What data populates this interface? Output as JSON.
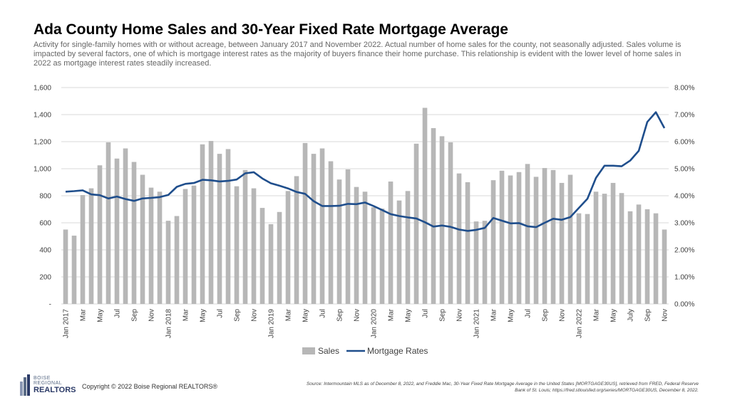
{
  "chart_data": {
    "type": "bar+line",
    "title": "Ada County Home Sales and 30-Year Fixed Rate Mortgage Average",
    "subtitle": "Activity for single-family homes with or without acreage, between January  2017 and November 2022. Actual number of home sales for the county, not seasonally adjusted. Sales volume is impacted by several factors, one of which is mortgage interest rates as the majority of buyers finance their home purchase. This relationship is evident with the lower level of home sales in 2022 as mortgage interest rates steadily increased.",
    "x_tick_labels": [
      "Jan 2017",
      "Mar",
      "May",
      "Jul",
      "Sep",
      "Nov",
      "Jan 2018",
      "Mar",
      "May",
      "Jul",
      "Sep",
      "Nov",
      "Jan 2019",
      "Mar",
      "May",
      "Jul",
      "Sep",
      "Nov",
      "Jan 2020",
      "Mar",
      "May",
      "Jul",
      "Sep",
      "Nov",
      "Jan 2021",
      "Mar",
      "May",
      "Jul",
      "Sep",
      "Nov",
      "Jan 2022",
      "Mar",
      "May",
      "July",
      "Sep",
      "Nov"
    ],
    "y_left": {
      "ylim": [
        0,
        1600
      ],
      "ticks": [
        "-",
        "200",
        "400",
        "600",
        "800",
        "1,000",
        "1,200",
        "1,400",
        "1,600"
      ]
    },
    "y_right": {
      "ylim": [
        0,
        8
      ],
      "ticks": [
        "0.00%",
        "1.00%",
        "2.00%",
        "3.00%",
        "4.00%",
        "5.00%",
        "6.00%",
        "7.00%",
        "8.00%"
      ]
    },
    "grid": true,
    "legend_position": "bottom",
    "series": [
      {
        "name": "Sales",
        "kind": "bar",
        "axis": "left",
        "color": "#b7b7b7",
        "values": [
          550,
          505,
          805,
          855,
          1025,
          1195,
          1075,
          1150,
          1050,
          955,
          860,
          830,
          615,
          650,
          850,
          875,
          1180,
          1205,
          1110,
          1145,
          870,
          990,
          855,
          710,
          590,
          680,
          835,
          945,
          1190,
          1110,
          1150,
          1055,
          920,
          995,
          865,
          830,
          715,
          705,
          905,
          765,
          835,
          1185,
          1450,
          1300,
          1240,
          1195,
          965,
          900,
          610,
          615,
          915,
          985,
          950,
          975,
          1035,
          940,
          1005,
          990,
          895,
          955,
          670,
          665,
          830,
          815,
          895,
          820,
          685,
          735,
          700,
          670,
          550
        ]
      },
      {
        "name": "Mortgage Rates",
        "kind": "line",
        "axis": "right",
        "color": "#1f4e8c",
        "values": [
          4.15,
          4.17,
          4.2,
          4.05,
          4.02,
          3.9,
          3.97,
          3.88,
          3.81,
          3.9,
          3.92,
          3.95,
          4.03,
          4.33,
          4.44,
          4.47,
          4.59,
          4.57,
          4.53,
          4.55,
          4.6,
          4.83,
          4.87,
          4.64,
          4.46,
          4.37,
          4.27,
          4.14,
          4.07,
          3.8,
          3.62,
          3.62,
          3.63,
          3.7,
          3.69,
          3.75,
          3.62,
          3.47,
          3.32,
          3.25,
          3.2,
          3.16,
          3.02,
          2.86,
          2.9,
          2.85,
          2.75,
          2.7,
          2.74,
          2.81,
          3.18,
          3.08,
          2.98,
          2.99,
          2.87,
          2.84,
          3.0,
          3.15,
          3.11,
          3.21,
          3.55,
          3.89,
          4.66,
          5.11,
          5.11,
          5.09,
          5.3,
          5.66,
          6.73,
          7.09,
          6.5
        ]
      }
    ]
  },
  "footer": {
    "logo_line1": "BOISE",
    "logo_line2": "REGIONAL",
    "logo_line3": "REALTORS",
    "copyright": "Copyright © 2022 Boise Regional REALTORS®",
    "source": "Source: Intermountain MLS as of December  8, 2022, and Freddie  Mac, 30-Year  Fixed Rate Mortgage Average in the United States [MORTGAGE30US], retrieved  from FRED, Federal Reserve Bank  of St. Louis; https://fred.stlouisfed.org/series/MORTGAGE30US,  December  8, 2022."
  },
  "colors": {
    "bar": "#b7b7b7",
    "line": "#1f4e8c",
    "grid": "#d9d9d9"
  }
}
